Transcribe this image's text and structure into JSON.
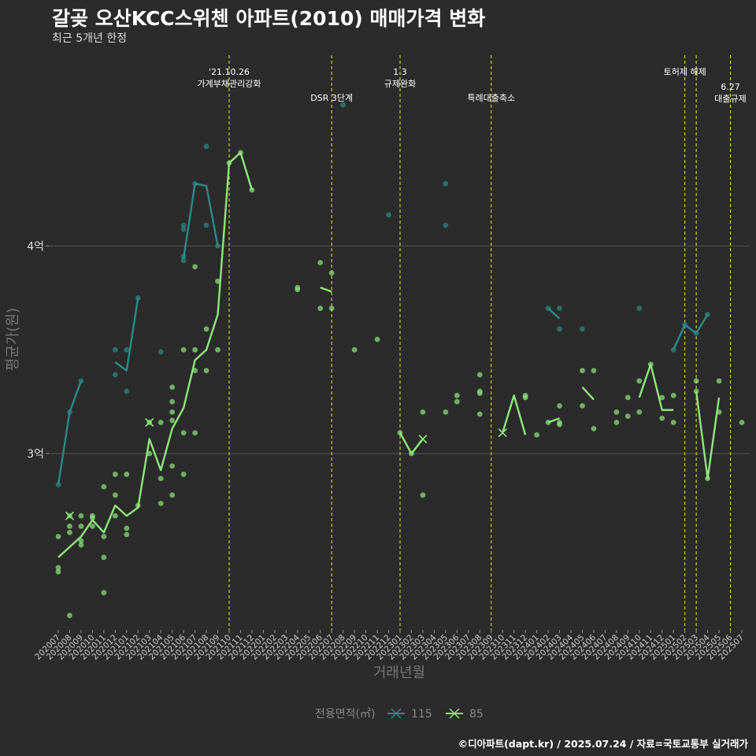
{
  "title": "갈곶 오산KCC스위첸 아파트(2010) 매매가격 변화",
  "subtitle": "최근 5개년 한정",
  "caption": "©디아파트(dapt.kr) / 2025.07.24 / 자료=국토교통부 실거래가",
  "colors": {
    "s115": "#2a8a8a",
    "s85": "#8ee87a",
    "event": "#e6e633",
    "grid": "#555555"
  },
  "chart_data": {
    "type": "line",
    "xlabel": "거래년월",
    "ylabel": "평균가(원)",
    "ylim": [
      2.15,
      4.95
    ],
    "y_ticks": [
      {
        "v": 3,
        "label": "3억"
      },
      {
        "v": 4,
        "label": "4억"
      }
    ],
    "categories": [
      "202007",
      "202008",
      "202009",
      "202010",
      "202011",
      "202012",
      "202101",
      "202102",
      "202103",
      "202104",
      "202105",
      "202106",
      "202107",
      "202108",
      "202109",
      "202110",
      "202111",
      "202112",
      "202201",
      "202202",
      "202203",
      "202204",
      "202205",
      "202206",
      "202207",
      "202208",
      "202209",
      "202210",
      "202211",
      "202212",
      "202301",
      "202302",
      "202303",
      "202304",
      "202305",
      "202306",
      "202307",
      "202308",
      "202309",
      "202310",
      "202311",
      "202312",
      "202401",
      "202402",
      "202403",
      "202404",
      "202405",
      "202406",
      "202407",
      "202408",
      "202409",
      "202410",
      "202411",
      "202412",
      "202501",
      "202502",
      "202503",
      "202504",
      "202505",
      "202506",
      "202507"
    ],
    "events": [
      {
        "x": 15.0,
        "lines": [
          "'21.10.26",
          "가계부채관리강화"
        ],
        "row": 0
      },
      {
        "x": 24.0,
        "lines": [
          "DSR 3단계"
        ],
        "row": 1
      },
      {
        "x": 30.0,
        "lines": [
          "1.3",
          "규제완화"
        ],
        "row": 0
      },
      {
        "x": 38.0,
        "lines": [
          "특례대출축소"
        ],
        "row": 1
      },
      {
        "x": 55.0,
        "lines": [
          "토허제 해제"
        ],
        "row": 0
      },
      {
        "x": 56.0,
        "lines": [],
        "row": 0
      },
      {
        "x": 59.0,
        "lines": [
          "6.27",
          "대출규제"
        ],
        "row": 1
      }
    ],
    "legend": {
      "title": "전용면적(㎡)",
      "items": [
        "115",
        "85"
      ]
    },
    "series": [
      {
        "name": "115",
        "color": "#2a8a8a",
        "values": [
          2.85,
          3.2,
          3.35,
          null,
          null,
          3.44,
          3.4,
          3.75,
          null,
          3.5,
          null,
          3.94,
          4.3,
          4.29,
          4.0,
          null,
          null,
          null,
          null,
          null,
          null,
          null,
          null,
          null,
          null,
          4.68,
          null,
          null,
          null,
          4.15,
          null,
          null,
          null,
          null,
          4.2,
          null,
          null,
          null,
          null,
          null,
          null,
          null,
          null,
          3.7,
          3.65,
          null,
          3.6,
          null,
          null,
          null,
          null,
          3.7,
          null,
          null,
          3.5,
          3.62,
          3.58,
          3.67,
          null,
          null,
          null
        ],
        "points": [
          [
            0,
            2.85
          ],
          [
            1,
            3.2
          ],
          [
            2,
            3.35
          ],
          [
            5,
            3.5
          ],
          [
            5,
            3.38
          ],
          [
            6,
            3.5
          ],
          [
            6,
            3.3
          ],
          [
            7,
            3.75
          ],
          [
            9,
            3.49
          ],
          [
            11,
            3.95
          ],
          [
            11,
            3.93
          ],
          [
            11,
            4.1
          ],
          [
            11,
            4.08
          ],
          [
            12,
            4.3
          ],
          [
            13,
            4.48
          ],
          [
            13,
            4.1
          ],
          [
            14,
            4.0
          ],
          [
            25,
            4.68
          ],
          [
            29,
            4.15
          ],
          [
            34,
            4.3
          ],
          [
            34,
            4.1
          ],
          [
            43,
            3.7
          ],
          [
            44,
            3.7
          ],
          [
            44,
            3.6
          ],
          [
            46,
            3.6
          ],
          [
            51,
            3.7
          ],
          [
            54,
            3.5
          ],
          [
            55,
            3.62
          ],
          [
            56,
            3.58
          ],
          [
            57,
            3.67
          ]
        ]
      },
      {
        "name": "85",
        "color": "#8ee87a",
        "values": [
          2.5,
          2.55,
          2.6,
          2.68,
          2.62,
          2.75,
          2.7,
          2.74,
          3.07,
          2.92,
          3.12,
          3.22,
          3.45,
          3.5,
          3.67,
          4.4,
          4.45,
          4.27,
          null,
          null,
          null,
          null,
          null,
          3.8,
          3.78,
          null,
          3.5,
          null,
          3.55,
          null,
          3.1,
          3.0,
          3.07,
          null,
          null,
          null,
          null,
          null,
          null,
          3.1,
          3.28,
          3.09,
          null,
          3.15,
          3.17,
          null,
          3.32,
          3.26,
          null,
          3.18,
          null,
          3.27,
          3.43,
          3.21,
          3.21,
          null,
          3.3,
          2.88,
          3.27,
          null,
          null
        ],
        "points": [
          [
            0,
            2.6
          ],
          [
            0,
            2.45
          ],
          [
            0,
            2.43
          ],
          [
            1,
            2.7
          ],
          [
            1,
            2.65
          ],
          [
            1,
            2.62
          ],
          [
            1,
            2.22
          ],
          [
            2,
            2.7
          ],
          [
            2,
            2.65
          ],
          [
            2,
            2.58
          ],
          [
            2,
            2.56
          ],
          [
            3,
            2.7
          ],
          [
            3,
            2.69
          ],
          [
            3,
            2.65
          ],
          [
            4,
            2.84
          ],
          [
            4,
            2.6
          ],
          [
            4,
            2.5
          ],
          [
            4,
            2.33
          ],
          [
            5,
            2.9
          ],
          [
            5,
            2.8
          ],
          [
            5,
            2.7
          ],
          [
            6,
            2.9
          ],
          [
            6,
            2.64
          ],
          [
            6,
            2.61
          ],
          [
            7,
            2.75
          ],
          [
            8,
            3.15
          ],
          [
            8,
            3.0
          ],
          [
            9,
            3.15
          ],
          [
            9,
            2.88
          ],
          [
            9,
            2.76
          ],
          [
            10,
            3.32
          ],
          [
            10,
            3.25
          ],
          [
            10,
            3.2
          ],
          [
            10,
            3.16
          ],
          [
            10,
            2.94
          ],
          [
            10,
            2.8
          ],
          [
            11,
            3.5
          ],
          [
            11,
            3.1
          ],
          [
            11,
            2.9
          ],
          [
            12,
            3.9
          ],
          [
            12,
            3.5
          ],
          [
            12,
            3.4
          ],
          [
            12,
            3.1
          ],
          [
            13,
            3.6
          ],
          [
            13,
            3.4
          ],
          [
            14,
            3.83
          ],
          [
            14,
            3.5
          ],
          [
            15,
            4.4
          ],
          [
            16,
            4.45
          ],
          [
            17,
            4.27
          ],
          [
            21,
            3.8
          ],
          [
            21,
            3.79
          ],
          [
            23,
            3.92
          ],
          [
            23,
            3.7
          ],
          [
            24,
            3.87
          ],
          [
            24,
            3.7
          ],
          [
            26,
            3.5
          ],
          [
            28,
            3.55
          ],
          [
            30,
            3.1
          ],
          [
            31,
            3.0
          ],
          [
            32,
            3.2
          ],
          [
            32,
            2.8
          ],
          [
            34,
            3.2
          ],
          [
            35,
            3.28
          ],
          [
            35,
            3.25
          ],
          [
            37,
            3.38
          ],
          [
            37,
            3.3
          ],
          [
            37,
            3.29
          ],
          [
            37,
            3.19
          ],
          [
            41,
            3.28
          ],
          [
            41,
            3.27
          ],
          [
            42,
            3.09
          ],
          [
            43,
            3.15
          ],
          [
            44,
            3.23
          ],
          [
            44,
            3.15
          ],
          [
            44,
            3.14
          ],
          [
            46,
            3.4
          ],
          [
            46,
            3.23
          ],
          [
            47,
            3.4
          ],
          [
            47,
            3.12
          ],
          [
            49,
            3.2
          ],
          [
            49,
            3.15
          ],
          [
            50,
            3.27
          ],
          [
            50,
            3.18
          ],
          [
            51,
            3.35
          ],
          [
            51,
            3.2
          ],
          [
            52,
            3.43
          ],
          [
            53,
            3.27
          ],
          [
            53,
            3.17
          ],
          [
            54,
            3.28
          ],
          [
            54,
            3.15
          ],
          [
            56,
            3.35
          ],
          [
            56,
            3.3
          ],
          [
            57,
            2.88
          ],
          [
            58,
            3.35
          ],
          [
            58,
            3.2
          ],
          [
            60,
            3.15
          ]
        ],
        "crosses": [
          [
            1,
            2.7
          ],
          [
            8,
            3.15
          ],
          [
            32,
            3.07
          ],
          [
            39,
            3.1
          ]
        ]
      }
    ]
  }
}
